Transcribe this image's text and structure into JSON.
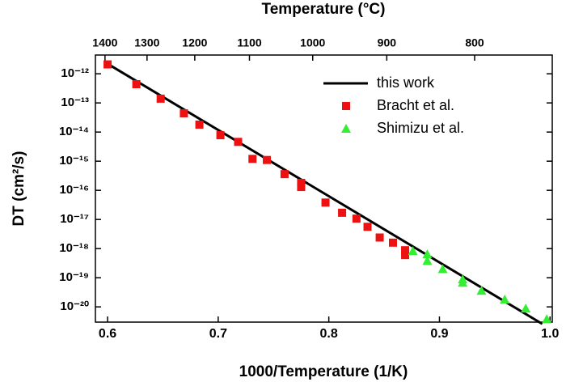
{
  "chart_data": {
    "type": "scatter",
    "x_label": "1000/Temperature (1/K)",
    "y_label": "DT (cm²/s)",
    "x2_label": "Temperature (°C)",
    "xlim": [
      0.589,
      1.002
    ],
    "xticks": [
      0.6,
      0.7,
      0.8,
      0.9,
      {
        "value": 1,
        "label": "1.0"
      }
    ],
    "x2ticks": [
      1400,
      1300,
      1200,
      1100,
      1000,
      900,
      800
    ],
    "ylim": [
      3e-21,
      4.4e-12
    ],
    "log_y": true,
    "yticks": [
      {
        "value": 1e-12,
        "label": "10⁻¹²"
      },
      {
        "value": 1e-13,
        "label": "10⁻¹³"
      },
      {
        "value": 1e-14,
        "label": "10⁻¹⁴"
      },
      {
        "value": 1e-15,
        "label": "10⁻¹⁵"
      },
      {
        "value": 1e-16,
        "label": "10⁻¹⁶"
      },
      {
        "value": 1e-17,
        "label": "10⁻¹⁷"
      },
      {
        "value": 1e-18,
        "label": "10⁻¹⁸"
      },
      {
        "value": 1e-19,
        "label": "10⁻¹⁹"
      },
      {
        "value": 1e-20,
        "label": "10⁻²⁰"
      }
    ],
    "legend": "upper right",
    "series": [
      {
        "name": "this work",
        "kind": "line",
        "color": "#000000",
        "x": [
          0.6,
          0.993
        ],
        "values": [
          2.2e-12,
          2.6e-21
        ]
      },
      {
        "name": "Bracht et al.",
        "kind": "square",
        "color": "#ee1111",
        "x": [
          0.6,
          0.626,
          0.648,
          0.669,
          0.683,
          0.702,
          0.718,
          0.731,
          0.744,
          0.76,
          0.775,
          0.775,
          0.797,
          0.812,
          0.825,
          0.835,
          0.846,
          0.858,
          0.869,
          0.869
        ],
        "values": [
          2.1e-12,
          4.4e-13,
          1.4e-13,
          4.4e-14,
          1.8e-14,
          7.8e-15,
          4.6e-15,
          1.2e-15,
          1.1e-15,
          3.6e-16,
          1.8e-16,
          1.3e-16,
          3.8e-17,
          1.7e-17,
          1.07e-17,
          5.6e-18,
          2.4e-18,
          1.6e-18,
          6e-19,
          8.8e-19
        ]
      },
      {
        "name": "Shimizu et al.",
        "kind": "triangle",
        "color": "#33ee33",
        "x": [
          0.876,
          0.889,
          0.889,
          0.903,
          0.921,
          0.921,
          0.938,
          0.959,
          0.978,
          0.997
        ],
        "values": [
          8.3e-19,
          6.4e-19,
          3.8e-19,
          2e-19,
          8.8e-20,
          6.8e-20,
          3.6e-20,
          1.8e-20,
          8.8e-21,
          3.8e-21
        ]
      }
    ]
  }
}
